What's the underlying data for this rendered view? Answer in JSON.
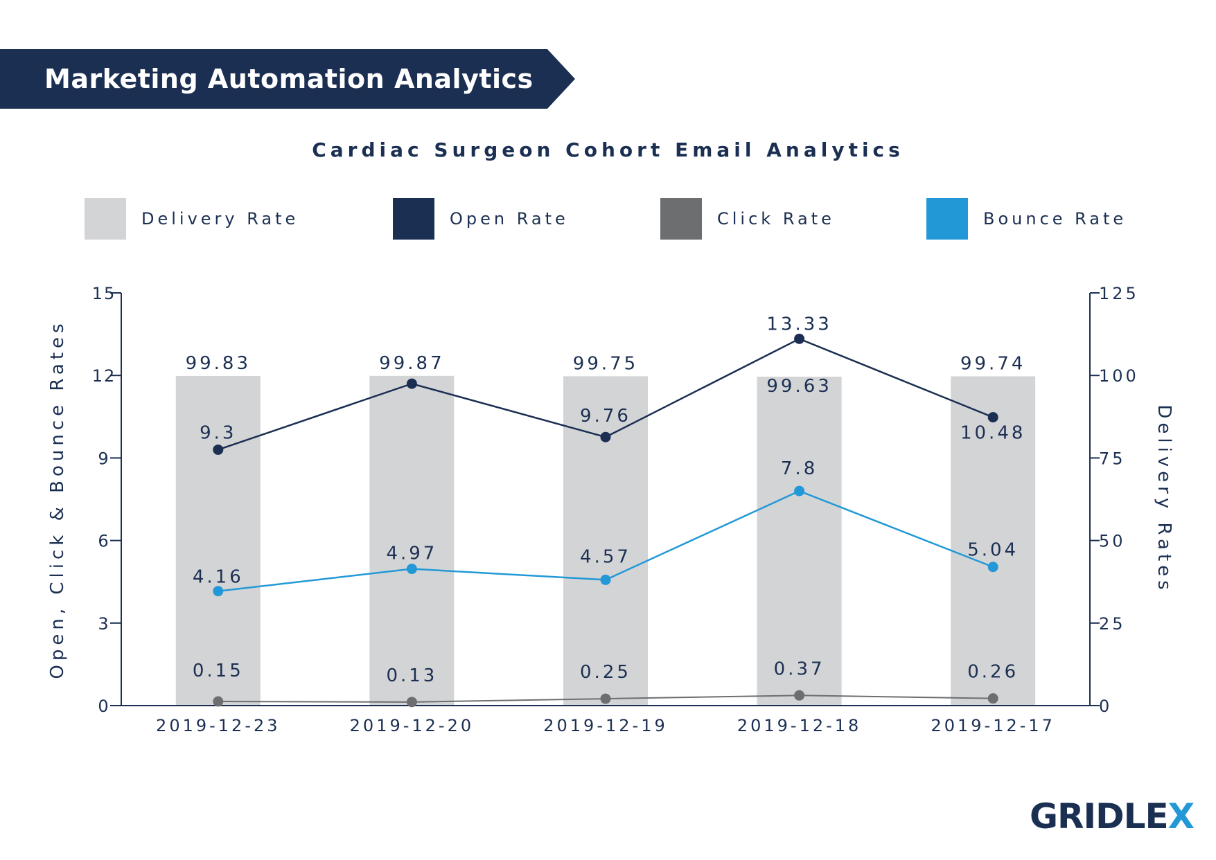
{
  "header": {
    "title": "Marketing Automation Analytics",
    "color": "#1b2f52"
  },
  "logo": {
    "text_main": "GRIDLE",
    "text_accent": "X"
  },
  "colors": {
    "delivery": "#d3d4d6",
    "open": "#1b2f52",
    "click": "#6d6e70",
    "bounce": "#2299d6",
    "axis": "#1b2f52"
  },
  "chart_data": {
    "type": "bar",
    "title": "Cardiac Surgeon Cohort Email Analytics",
    "categories": [
      "2019-12-23",
      "2019-12-20",
      "2019-12-19",
      "2019-12-18",
      "2019-12-17"
    ],
    "ylabel": "Open, Click & Bounce Rates",
    "y2label": "Delivery Rates",
    "ylim": [
      0,
      15
    ],
    "y2lim": [
      0,
      125
    ],
    "yticks": [
      "0",
      "3",
      "6",
      "9",
      "12",
      "15"
    ],
    "y2ticks": [
      "0",
      "25",
      "50",
      "75",
      "100",
      "125"
    ],
    "legend": [
      "Delivery Rate",
      "Open Rate",
      "Click Rate",
      "Bounce Rate"
    ],
    "legend_position": "top",
    "series": [
      {
        "name": "Delivery Rate",
        "type": "bar",
        "axis": "right",
        "values": [
          99.83,
          99.87,
          99.75,
          99.63,
          99.74
        ],
        "labels": [
          "99.83",
          "99.87",
          "99.75",
          "99.63",
          "99.74"
        ]
      },
      {
        "name": "Open Rate",
        "type": "line",
        "axis": "left",
        "values": [
          9.3,
          11.7,
          9.76,
          13.33,
          10.48
        ],
        "labels": [
          "9.3",
          "",
          "9.76",
          "13.33",
          "10.48"
        ]
      },
      {
        "name": "Click Rate",
        "type": "line",
        "axis": "left",
        "values": [
          0.15,
          0.13,
          0.25,
          0.37,
          0.26
        ],
        "labels": [
          "0.15",
          "0.13",
          "0.25",
          "0.37",
          "0.26"
        ]
      },
      {
        "name": "Bounce Rate",
        "type": "line",
        "axis": "left",
        "values": [
          4.16,
          4.97,
          4.57,
          7.8,
          5.04
        ],
        "labels": [
          "4.16",
          "4.97",
          "4.57",
          "7.8",
          "5.04"
        ]
      }
    ]
  }
}
